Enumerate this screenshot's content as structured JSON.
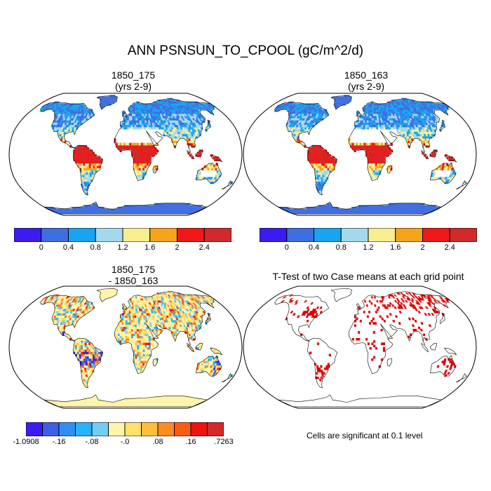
{
  "figure": {
    "title": "ANN PSNSUN_TO_CPOOL (gC/m^2/d)"
  },
  "panels": {
    "top_left": {
      "title_line1": "1850_175",
      "title_line2": "(yrs 2-9)"
    },
    "top_right": {
      "title_line1": "1850_163",
      "title_line2": "(yrs 2-9)"
    },
    "bottom_left": {
      "title_line1": "1850_175",
      "title_line2": "- 1850_163"
    },
    "bottom_right": {
      "title_line1": "T-Test of two Case means at each grid point"
    }
  },
  "colorbar_top": {
    "colors": [
      "#3a1cf2",
      "#3f6ee0",
      "#1aa4f0",
      "#a4d8ec",
      "#f8ee90",
      "#f6a41c",
      "#f01818",
      "#d02a2a"
    ],
    "labels": [
      "0",
      "0.4",
      "0.8",
      "1.2",
      "1.6",
      "2",
      "2.4"
    ]
  },
  "colorbar_bottom": {
    "colors": [
      "#3a1cf2",
      "#3e5ee6",
      "#2f8ff0",
      "#27b4f4",
      "#72cdf2",
      "#fff4ac",
      "#ffe06a",
      "#ffbe3a",
      "#ff8c1e",
      "#ff5a14",
      "#ee1212",
      "#d22a2a"
    ],
    "labels": [
      "-1.0908",
      "-.16",
      "-.08",
      "-.0",
      ".08",
      ".16",
      ".7263"
    ]
  },
  "ttest": {
    "note": "Cells are significant at 0.1 level",
    "significant_color": "#e00000"
  },
  "colors": {
    "land_outline": "#000000",
    "ocean": "#ffffff",
    "frame": "#000000"
  }
}
